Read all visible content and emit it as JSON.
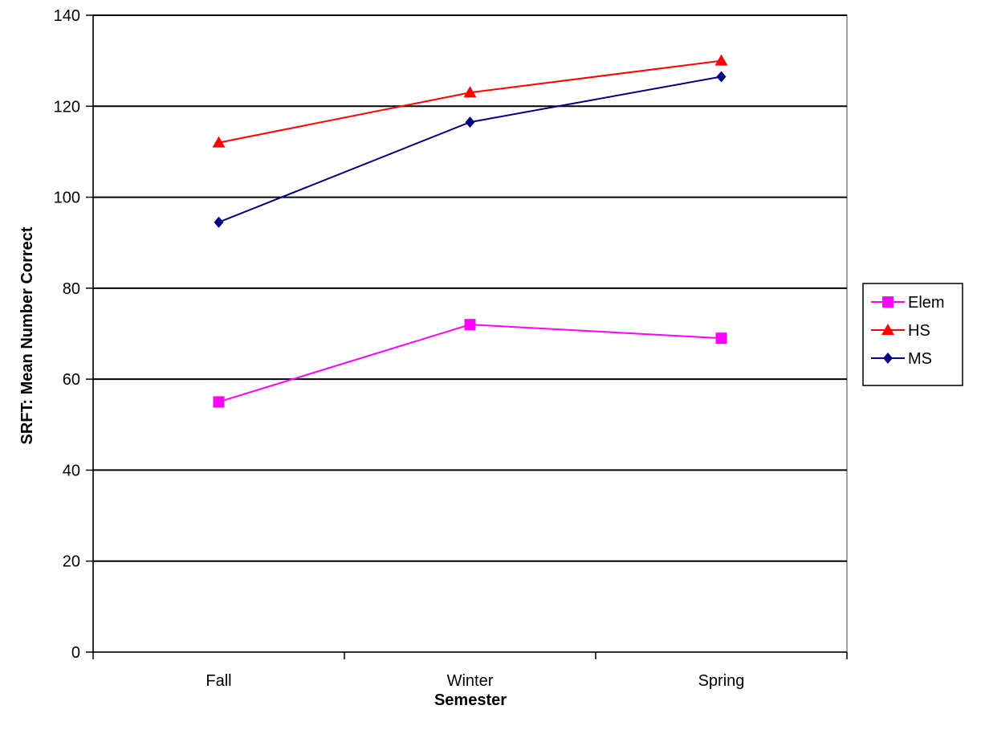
{
  "chart_data": {
    "type": "line",
    "categories": [
      "Fall",
      "Winter",
      "Spring"
    ],
    "series": [
      {
        "name": "Elem",
        "values": [
          55,
          72,
          69
        ],
        "color": "#ff00ff",
        "marker": "square"
      },
      {
        "name": "HS",
        "values": [
          112,
          123,
          130
        ],
        "color": "#ff0000",
        "marker": "triangle"
      },
      {
        "name": "MS",
        "values": [
          94.5,
          116.5,
          126.5
        ],
        "color": "#000080",
        "marker": "diamond"
      }
    ],
    "xlabel": "Semester",
    "ylabel": "SRFT: Mean Number Correct",
    "ylim": [
      0,
      140
    ],
    "yticks": [
      0,
      20,
      40,
      60,
      80,
      100,
      120,
      140
    ],
    "grid": true,
    "legend_position": "right"
  }
}
